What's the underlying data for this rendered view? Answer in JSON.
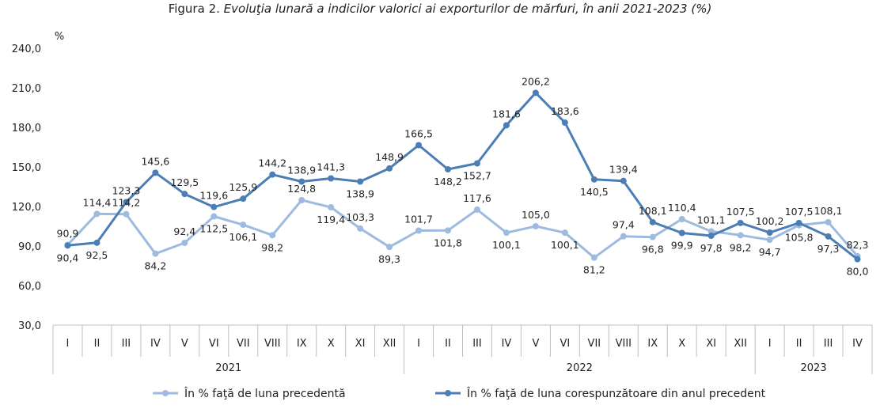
{
  "title_prefix": "Figura 2.",
  "title_main": "Evoluţia lunară a indicilor valorici ai exporturilor de mărfuri, în anii 2021-2023 (%)",
  "chart_data": {
    "type": "line",
    "ylabel": "%",
    "ylim": [
      30,
      240
    ],
    "yticks": [
      "30,0",
      "60,0",
      "90,0",
      "120,0",
      "150,0",
      "180,0",
      "210,0",
      "240,0"
    ],
    "categories": [
      "I",
      "II",
      "III",
      "IV",
      "V",
      "VI",
      "VII",
      "VIII",
      "IX",
      "X",
      "XI",
      "XII",
      "I",
      "II",
      "III",
      "IV",
      "V",
      "VI",
      "VII",
      "VIII",
      "IX",
      "X",
      "XI",
      "XII",
      "I",
      "II",
      "III",
      "IV"
    ],
    "years": [
      {
        "label": "2021",
        "start": 0,
        "end": 11
      },
      {
        "label": "2022",
        "start": 12,
        "end": 23
      },
      {
        "label": "2023",
        "start": 24,
        "end": 27
      }
    ],
    "series": [
      {
        "name": "În % faţă de luna precedentă",
        "color": "#9dbbdf",
        "values": [
          90.9,
          114.4,
          114.2,
          84.2,
          92.4,
          112.5,
          106.1,
          98.2,
          124.8,
          119.4,
          103.3,
          89.3,
          101.7,
          101.8,
          117.6,
          100.1,
          105.0,
          100.1,
          81.2,
          97.4,
          96.8,
          110.4,
          101.1,
          98.2,
          94.7,
          105.8,
          108.1,
          82.3
        ],
        "labels": [
          "90,9",
          "114,4",
          "114,2",
          "84,2",
          "92,4",
          "112,5",
          "106,1",
          "98,2",
          "124,8",
          "119,4",
          "103,3",
          "89,3",
          "101,7",
          "101,8",
          "117,6",
          "100,1",
          "105,0",
          "100,1",
          "81,2",
          "97,4",
          "96,8",
          "110,4",
          "101,1",
          "98,2",
          "94,7",
          "105,8",
          "108,1",
          "82,3"
        ]
      },
      {
        "name": "În % faţă de luna corespunzătoare din anul precedent",
        "color": "#4a7eb5",
        "values": [
          90.4,
          92.5,
          123.3,
          145.6,
          129.5,
          119.6,
          125.9,
          144.2,
          138.9,
          141.3,
          138.9,
          148.9,
          166.5,
          148.2,
          152.7,
          181.6,
          206.2,
          183.6,
          140.5,
          139.4,
          108.1,
          99.9,
          97.8,
          107.5,
          100.2,
          107.5,
          97.3,
          80.0
        ],
        "labels": [
          "90,4",
          "92,5",
          "123,3",
          "145,6",
          "129,5",
          "119,6",
          "125,9",
          "144,2",
          "138,9",
          "141,3",
          "138,9",
          "148,9",
          "166,5",
          "148,2",
          "152,7",
          "181,6",
          "206,2",
          "183,6",
          "140,5",
          "139,4",
          "108,1",
          "99,9",
          "97,8",
          "107,5",
          "100,2",
          "107,5",
          "97,3",
          "80,0"
        ]
      }
    ],
    "legend": "bottom"
  }
}
